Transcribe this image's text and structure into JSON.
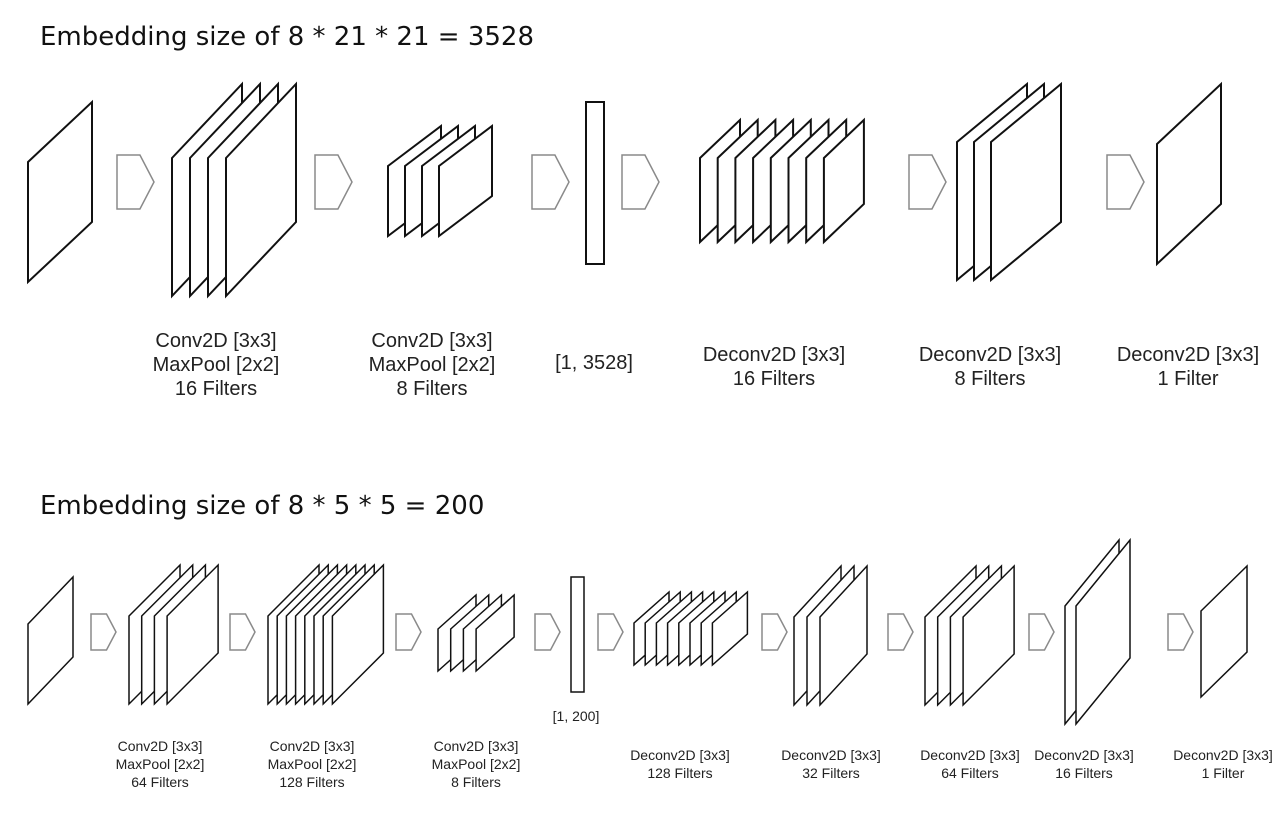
{
  "colors": {
    "line": "#111111",
    "arrow": "#8a8a8a",
    "text": "#222222",
    "background": "#ffffff"
  },
  "diagrams": [
    {
      "title": "Embedding size of 8 *  21 * 21 = 3528",
      "stages": [
        {
          "kind": "input",
          "label": []
        },
        {
          "kind": "stack",
          "label": [
            "Conv2D [3x3]",
            "MaxPool [2x2]",
            "16 Filters"
          ]
        },
        {
          "kind": "stack",
          "label": [
            "Conv2D [3x3]",
            "MaxPool [2x2]",
            "8 Filters"
          ]
        },
        {
          "kind": "vector",
          "label": [
            "[1, 3528]"
          ]
        },
        {
          "kind": "stack",
          "label": [
            "Deconv2D [3x3]",
            "16 Filters"
          ]
        },
        {
          "kind": "stack",
          "label": [
            "Deconv2D [3x3]",
            "8 Filters"
          ]
        },
        {
          "kind": "output",
          "label": [
            "Deconv2D [3x3]",
            "1 Filter"
          ]
        }
      ]
    },
    {
      "title": "Embedding size of 8 * 5 * 5 = 200",
      "stages": [
        {
          "kind": "input",
          "label": []
        },
        {
          "kind": "stack",
          "label": [
            "Conv2D [3x3]",
            "MaxPool [2x2]",
            "64 Filters"
          ]
        },
        {
          "kind": "stack",
          "label": [
            "Conv2D [3x3]",
            "MaxPool [2x2]",
            "128 Filters"
          ]
        },
        {
          "kind": "stack",
          "label": [
            "Conv2D [3x3]",
            "MaxPool [2x2]",
            "8 Filters"
          ]
        },
        {
          "kind": "vector",
          "label": [
            "[1, 200]"
          ]
        },
        {
          "kind": "stack",
          "label": [
            "Deconv2D [3x3]",
            "128 Filters"
          ]
        },
        {
          "kind": "stack",
          "label": [
            "Deconv2D [3x3]",
            "32 Filters"
          ]
        },
        {
          "kind": "stack",
          "label": [
            "Deconv2D [3x3]",
            "64 Filters"
          ]
        },
        {
          "kind": "stack",
          "label": [
            "Deconv2D [3x3]",
            "16 Filters"
          ]
        },
        {
          "kind": "output",
          "label": [
            "Deconv2D [3x3]",
            "1 Filter"
          ]
        }
      ]
    }
  ]
}
